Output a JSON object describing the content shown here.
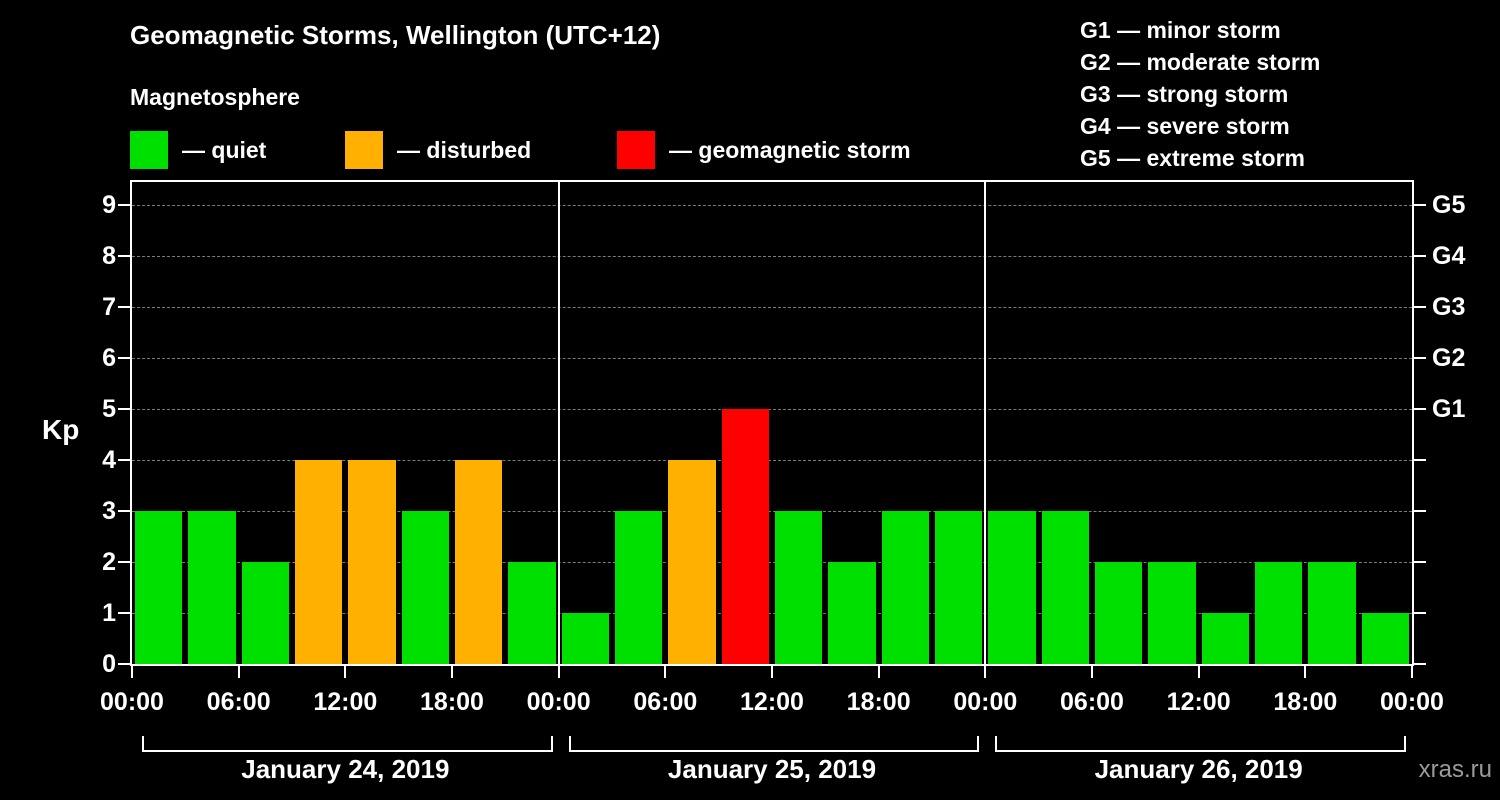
{
  "header": {
    "title": "Geomagnetic Storms, Wellington (UTC+12)",
    "subtitle": "Magnetosphere"
  },
  "legend": {
    "items": [
      {
        "key": "quiet",
        "label": "— quiet",
        "color": "#00e000"
      },
      {
        "key": "disturbed",
        "label": "— disturbed",
        "color": "#ffb000"
      },
      {
        "key": "storm",
        "label": "— geomagnetic storm",
        "color": "#ff0000"
      }
    ]
  },
  "g_scale": {
    "items": [
      {
        "label": "G1 — minor storm"
      },
      {
        "label": "G2 — moderate storm"
      },
      {
        "label": "G3 — strong storm"
      },
      {
        "label": "G4 — severe storm"
      },
      {
        "label": "G5 — extreme storm"
      }
    ]
  },
  "axis": {
    "ylabel": "Kp",
    "yticks": [
      "0",
      "1",
      "2",
      "3",
      "4",
      "5",
      "6",
      "7",
      "8",
      "9"
    ],
    "right_labels": [
      {
        "kp": 5,
        "text": "G1"
      },
      {
        "kp": 6,
        "text": "G2"
      },
      {
        "kp": 7,
        "text": "G3"
      },
      {
        "kp": 8,
        "text": "G4"
      },
      {
        "kp": 9,
        "text": "G5"
      }
    ],
    "xticks": [
      "00:00",
      "06:00",
      "12:00",
      "18:00",
      "00:00",
      "06:00",
      "12:00",
      "18:00",
      "00:00",
      "06:00",
      "12:00",
      "18:00",
      "00:00"
    ]
  },
  "chart_data": {
    "type": "bar",
    "title": "Geomagnetic Storms, Wellington (UTC+12)",
    "ylabel": "Kp",
    "ylim": [
      0,
      9
    ],
    "interval_hours": 3,
    "grid": "dashed horizontal line at each Kp integer",
    "days": [
      {
        "label": "January 24, 2019",
        "values": [
          3,
          3,
          2,
          4,
          4,
          3,
          4,
          2
        ]
      },
      {
        "label": "January 25, 2019",
        "values": [
          1,
          3,
          4,
          5,
          3,
          2,
          3,
          3
        ]
      },
      {
        "label": "January 26, 2019",
        "values": [
          3,
          3,
          2,
          2,
          1,
          2,
          2,
          1
        ]
      }
    ],
    "color_rule": {
      "quiet_max_kp": 3,
      "disturbed_kp": 4,
      "storm_min_kp": 5
    },
    "colors": {
      "quiet": "#00e000",
      "disturbed": "#ffb000",
      "storm": "#ff0000",
      "background": "#000000",
      "text": "#ffffff",
      "grid": "#7a7a7a"
    }
  },
  "footer": {
    "watermark": "xras.ru"
  }
}
